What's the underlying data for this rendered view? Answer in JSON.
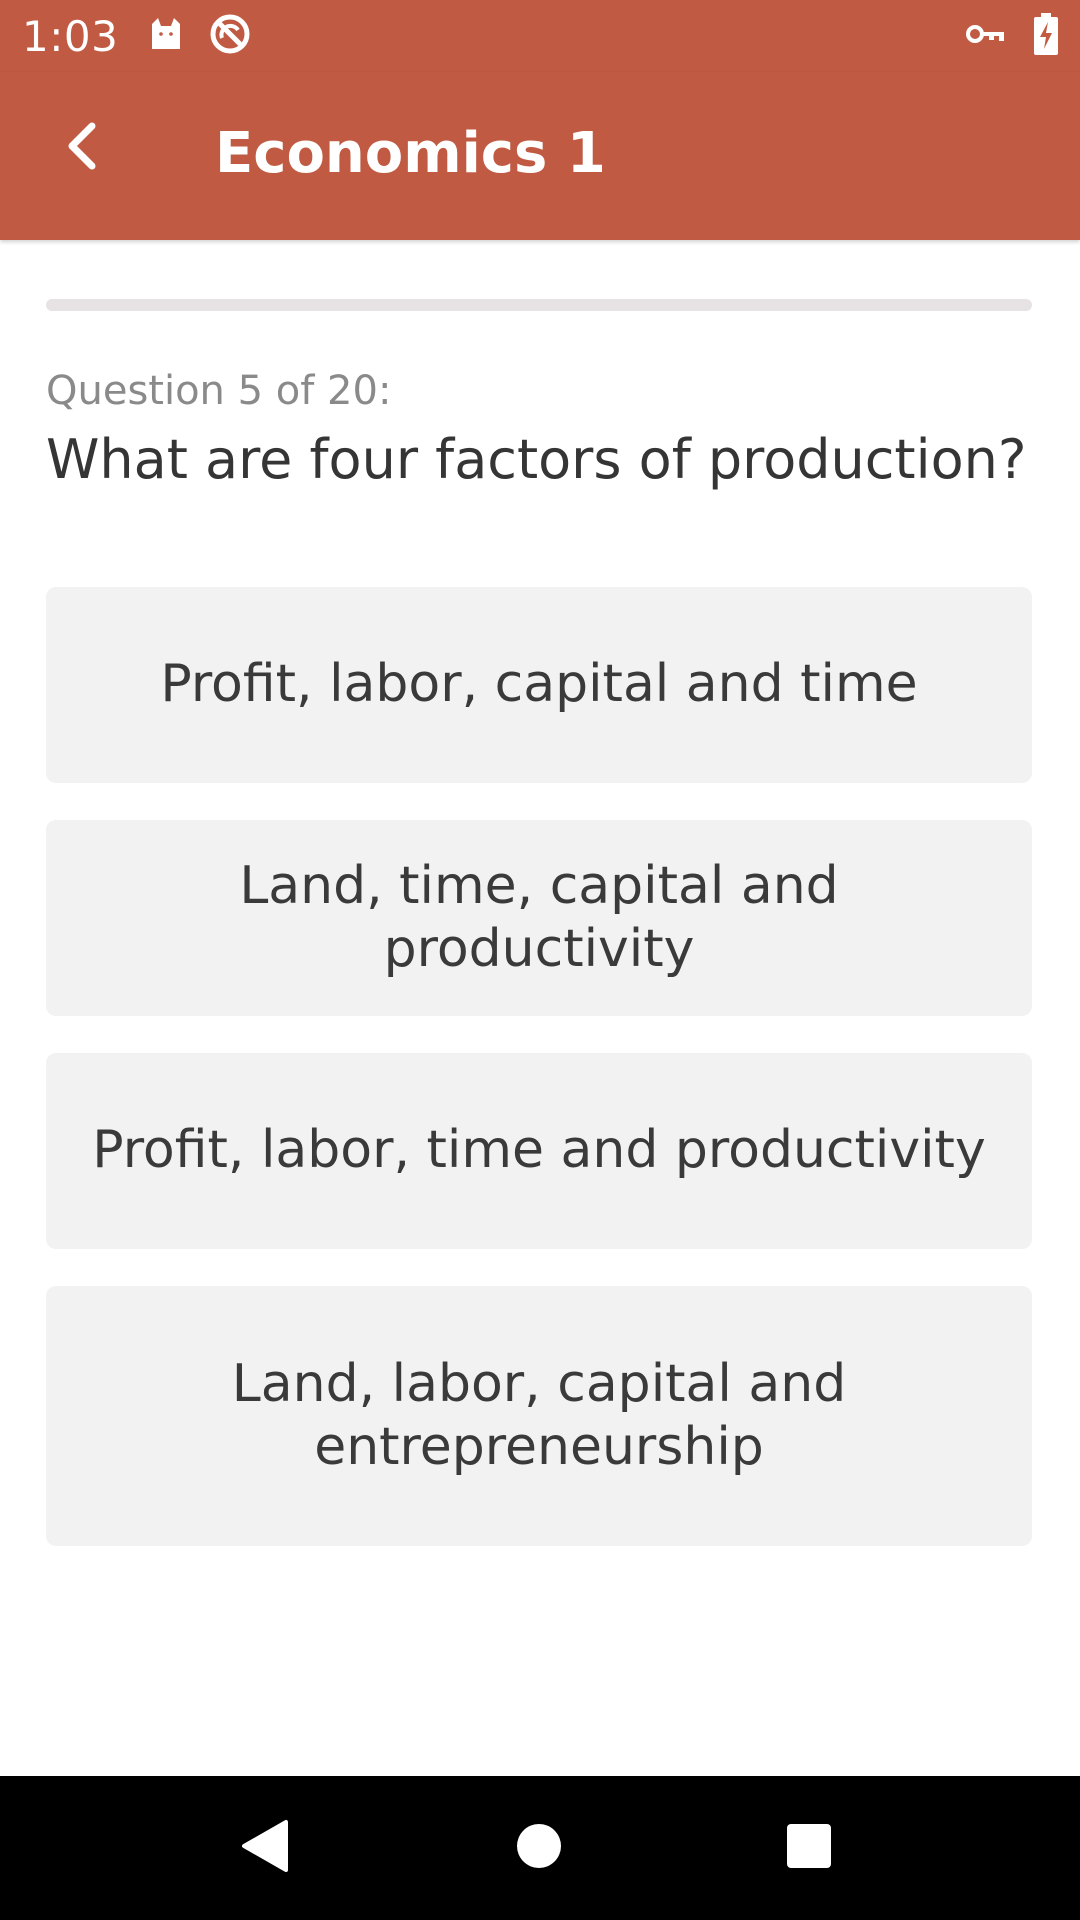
{
  "status_bar": {
    "time": "1:03",
    "icons": [
      "cat-icon",
      "no-sync-icon",
      "vpn-key-icon",
      "battery-charging-icon"
    ]
  },
  "app_bar": {
    "title": "Economics 1",
    "back_icon": "chevron-left-icon"
  },
  "progress": {
    "current": 5,
    "total": 20,
    "fill_fraction": 0
  },
  "question": {
    "counter": "Question 5 of 20:",
    "text": "What are four factors of production?"
  },
  "answers": [
    "Profit, labor, capital and time",
    "Land, time, capital and productivity",
    "Profit, labor, time and productivity",
    "Land, labor, capital and entrepreneurship"
  ],
  "nav_bar": {
    "buttons": [
      "back-triangle-icon",
      "home-circle-icon",
      "recents-square-icon"
    ]
  },
  "colors": {
    "accent": "#c15a42",
    "answer_bg": "#f2f2f2",
    "progress_track": "#e7e2e3"
  }
}
